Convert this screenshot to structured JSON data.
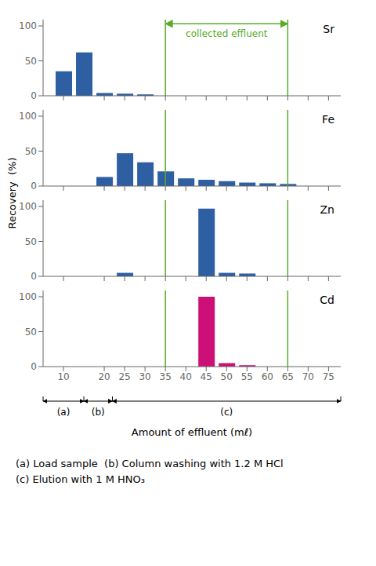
{
  "chart_data": [
    {
      "type": "bar",
      "x": [
        10,
        15,
        20,
        25,
        30
      ],
      "values": [
        35,
        62,
        4,
        3,
        2
      ],
      "color": "#2E5FA3",
      "xlim": [
        5,
        78
      ],
      "xticks": [
        10,
        20,
        25,
        30,
        35,
        40,
        45,
        50,
        55,
        60,
        65,
        70,
        75
      ],
      "ylim": [
        0,
        109
      ],
      "yticks": [
        0,
        50,
        100
      ],
      "grid": false,
      "tick_labels": "y",
      "reference_lines": [
        {
          "value": 35,
          "color": "#5AAB2A"
        },
        {
          "value": 65,
          "color": "#5AAB2A"
        }
      ],
      "annotations": [
        {
          "text": "Sr"
        },
        {
          "text": "collected effluent",
          "x": [
            35,
            65
          ],
          "color": "#5AAB2A"
        }
      ]
    },
    {
      "type": "bar",
      "x": [
        20,
        25,
        30,
        35,
        40,
        45,
        50,
        55,
        60,
        65
      ],
      "values": [
        13,
        47,
        34,
        21,
        11,
        9,
        7,
        5,
        4,
        3
      ],
      "color": "#2E5FA3",
      "xlim": [
        5,
        78
      ],
      "xticks": [
        10,
        20,
        25,
        30,
        35,
        40,
        45,
        50,
        55,
        60,
        65,
        70,
        75
      ],
      "ylim": [
        0,
        109
      ],
      "yticks": [
        0,
        50,
        100
      ],
      "grid": false,
      "tick_labels": "y",
      "reference_lines": [
        {
          "value": 35,
          "color": "#5AAB2A"
        },
        {
          "value": 65,
          "color": "#5AAB2A"
        }
      ],
      "annotations": [
        {
          "text": "Fe"
        }
      ]
    },
    {
      "type": "bar",
      "x": [
        25,
        45,
        50,
        55
      ],
      "values": [
        5,
        97,
        5,
        4
      ],
      "color": "#2E5FA3",
      "xlim": [
        5,
        78
      ],
      "xticks": [
        10,
        20,
        25,
        30,
        35,
        40,
        45,
        50,
        55,
        60,
        65,
        70,
        75
      ],
      "ylim": [
        0,
        109
      ],
      "yticks": [
        0,
        50,
        100
      ],
      "grid": false,
      "tick_labels": "y",
      "reference_lines": [
        {
          "value": 35,
          "color": "#5AAB2A"
        },
        {
          "value": 65,
          "color": "#5AAB2A"
        }
      ],
      "annotations": [
        {
          "text": "Zn"
        }
      ]
    },
    {
      "type": "bar",
      "x": [
        45,
        50,
        55
      ],
      "values": [
        100,
        5,
        2
      ],
      "color": "#CC1077",
      "xlim": [
        5,
        78
      ],
      "xticks": [
        10,
        20,
        25,
        30,
        35,
        40,
        45,
        50,
        55,
        60,
        65,
        70,
        75
      ],
      "ylim": [
        0,
        109
      ],
      "yticks": [
        0,
        50,
        100
      ],
      "grid": false,
      "tick_labels": true,
      "reference_lines": [
        {
          "value": 35,
          "color": "#5AAB2A"
        },
        {
          "value": 65,
          "color": "#5AAB2A"
        }
      ],
      "annotations": [
        {
          "text": "Cd"
        }
      ]
    }
  ],
  "ylabel": "Recovery  (%)",
  "xlabel": "Amount of effluent (mℓ)",
  "annotations": [
    {
      "text": "(a)",
      "x": [
        5,
        15
      ]
    },
    {
      "text": "(b)",
      "x": [
        15,
        22
      ]
    },
    {
      "text": "(c)",
      "x": [
        22,
        78
      ]
    },
    {
      "text": "(a) Load sample  (b) Column washing with 1.2 M HCl\n(c) Elution with 1 M HNO₃"
    }
  ]
}
